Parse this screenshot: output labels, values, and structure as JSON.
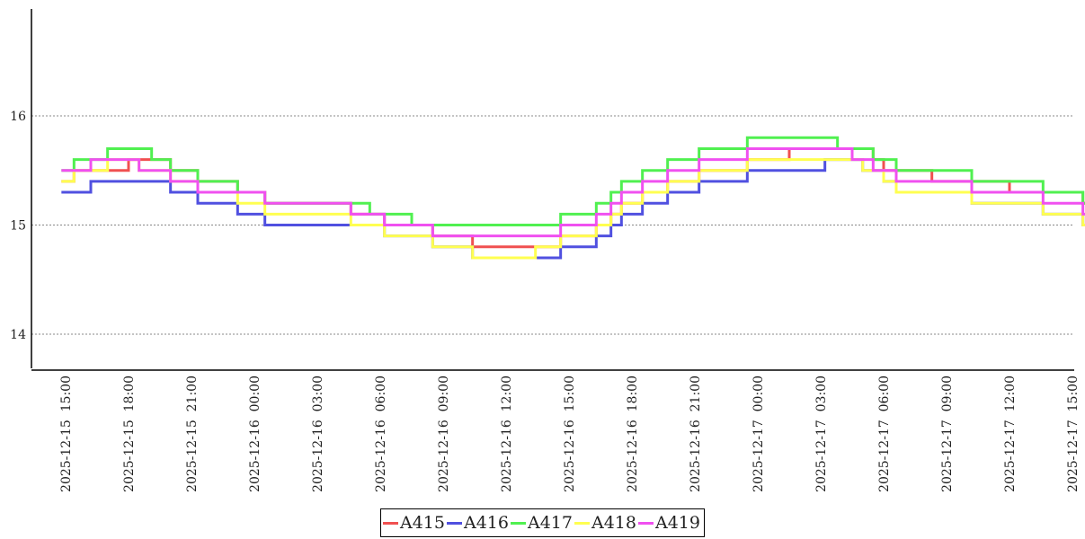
{
  "chart_data": {
    "type": "line",
    "title": "",
    "xlabel": "",
    "ylabel": "",
    "ylim": [
      13.7,
      17
    ],
    "yticks": [
      14,
      15,
      16
    ],
    "grid": "horizontal dotted at y ticks",
    "legend_position": "bottom-center",
    "x_ticks": [
      "2025-12-15 15:00",
      "2025-12-15 18:00",
      "2025-12-15 21:00",
      "2025-12-16 00:00",
      "2025-12-16 03:00",
      "2025-12-16 06:00",
      "2025-12-16 09:00",
      "2025-12-16 12:00",
      "2025-12-16 15:00",
      "2025-12-16 18:00",
      "2025-12-16 21:00",
      "2025-12-17 00:00",
      "2025-12-17 03:00",
      "2025-12-17 06:00",
      "2025-12-17 09:00",
      "2025-12-17 12:00",
      "2025-12-17 15:00"
    ],
    "x_hours": [
      -0.2,
      0.2,
      0.4,
      1.2,
      2.0,
      3.0,
      3.5,
      4.1,
      5.0,
      6.3,
      8.2,
      9.5,
      13.6,
      14.5,
      15.2,
      16.5,
      17.5,
      18.5,
      19.4,
      20.3,
      21.5,
      22.4,
      23.6,
      25.3,
      26.0,
      26.5,
      27.5,
      28.7,
      30.2,
      32.5,
      34.5,
      35.4,
      36.2,
      36.8,
      37.5,
      38.0,
      38.5,
      39.0,
      39.6,
      41.3,
      43.2,
      45.0,
      46.6,
      48.5,
      50.5,
      53.0,
      55.5,
      57.6,
      59.0,
      60.5,
      61.2,
      62.5,
      63.2,
      64.0,
      64.7,
      65.3,
      66.2,
      67.0,
      67.8,
      68.6,
      69.7
    ],
    "series": [
      {
        "name": "A415",
        "color": "#f05050",
        "values": [
          15.4,
          15.4,
          15.5,
          15.5,
          15.5,
          15.6,
          15.6,
          15.6,
          15.5,
          15.4,
          15.3,
          15.2,
          15.1,
          15.1,
          15.0,
          15.0,
          14.9,
          14.9,
          14.8,
          14.8,
          14.8,
          14.8,
          14.9,
          15.0,
          15.1,
          15.2,
          15.3,
          15.4,
          15.5,
          15.6,
          15.7,
          15.7,
          15.7,
          15.7,
          15.7,
          15.7,
          15.6,
          15.5,
          15.5,
          15.4,
          15.4,
          15.3,
          15.3,
          15.2,
          15.1,
          15.0,
          15.0,
          14.9,
          14.9,
          14.9,
          15.0,
          15.0,
          15.1,
          15.2,
          15.3,
          15.4,
          15.5,
          15.6,
          15.6,
          15.6,
          15.6
        ]
      },
      {
        "name": "A416",
        "color": "#5050e0",
        "values": [
          15.3,
          15.3,
          15.3,
          15.4,
          15.4,
          15.4,
          15.4,
          15.4,
          15.3,
          15.2,
          15.1,
          15.0,
          15.0,
          15.0,
          14.9,
          14.9,
          14.8,
          14.8,
          14.7,
          14.7,
          14.7,
          14.7,
          14.8,
          14.9,
          15.0,
          15.1,
          15.2,
          15.3,
          15.4,
          15.5,
          15.5,
          15.5,
          15.6,
          15.6,
          15.6,
          15.5,
          15.5,
          15.4,
          15.3,
          15.3,
          15.2,
          15.2,
          15.1,
          15.0,
          15.0,
          14.9,
          14.9,
          14.8,
          14.8,
          14.9,
          14.9,
          15.0,
          15.0,
          15.1,
          15.2,
          15.3,
          15.4,
          15.5,
          15.5,
          15.5,
          15.5
        ]
      },
      {
        "name": "A417",
        "color": "#50f050",
        "values": [
          15.5,
          15.5,
          15.6,
          15.6,
          15.7,
          15.7,
          15.7,
          15.6,
          15.5,
          15.4,
          15.3,
          15.2,
          15.2,
          15.1,
          15.1,
          15.0,
          15.0,
          15.0,
          15.0,
          15.0,
          15.0,
          15.0,
          15.1,
          15.2,
          15.3,
          15.4,
          15.5,
          15.6,
          15.7,
          15.8,
          15.8,
          15.8,
          15.8,
          15.7,
          15.7,
          15.7,
          15.6,
          15.6,
          15.5,
          15.5,
          15.4,
          15.4,
          15.3,
          15.2,
          15.1,
          15.1,
          15.0,
          15.0,
          15.1,
          15.1,
          15.2,
          15.3,
          15.4,
          15.5,
          15.6,
          15.7,
          15.7,
          15.7,
          15.7,
          15.7,
          15.7
        ]
      },
      {
        "name": "A418",
        "color": "#ffff50",
        "values": [
          15.4,
          15.4,
          15.5,
          15.5,
          15.6,
          15.6,
          15.5,
          15.5,
          15.4,
          15.3,
          15.2,
          15.1,
          15.0,
          15.0,
          14.9,
          14.9,
          14.8,
          14.8,
          14.7,
          14.7,
          14.7,
          14.8,
          14.9,
          15.0,
          15.1,
          15.2,
          15.3,
          15.4,
          15.5,
          15.6,
          15.6,
          15.6,
          15.6,
          15.6,
          15.6,
          15.5,
          15.5,
          15.4,
          15.3,
          15.3,
          15.2,
          15.2,
          15.1,
          15.0,
          14.9,
          14.9,
          14.9,
          14.8,
          14.9,
          15.0,
          15.1,
          15.2,
          15.3,
          15.4,
          15.5,
          15.5,
          15.5,
          15.5,
          15.5,
          15.5,
          15.5
        ]
      },
      {
        "name": "A419",
        "color": "#f050f0",
        "values": [
          15.5,
          15.5,
          15.5,
          15.6,
          15.6,
          15.6,
          15.5,
          15.5,
          15.4,
          15.3,
          15.3,
          15.2,
          15.1,
          15.1,
          15.0,
          15.0,
          14.9,
          14.9,
          14.9,
          14.9,
          14.9,
          14.9,
          15.0,
          15.1,
          15.2,
          15.3,
          15.4,
          15.5,
          15.6,
          15.7,
          15.7,
          15.7,
          15.7,
          15.7,
          15.6,
          15.6,
          15.5,
          15.5,
          15.4,
          15.4,
          15.3,
          15.3,
          15.2,
          15.1,
          15.0,
          15.0,
          15.0,
          14.9,
          14.9,
          15.0,
          15.1,
          15.2,
          15.3,
          15.4,
          15.5,
          15.5,
          15.5,
          15.5,
          15.5,
          15.5,
          15.5
        ]
      }
    ]
  },
  "legend": {
    "items": [
      {
        "label": "A415",
        "color": "#f05050"
      },
      {
        "label": "A416",
        "color": "#5050e0"
      },
      {
        "label": "A417",
        "color": "#50f050"
      },
      {
        "label": "A418",
        "color": "#ffff50"
      },
      {
        "label": "A419",
        "color": "#f050f0"
      }
    ]
  }
}
